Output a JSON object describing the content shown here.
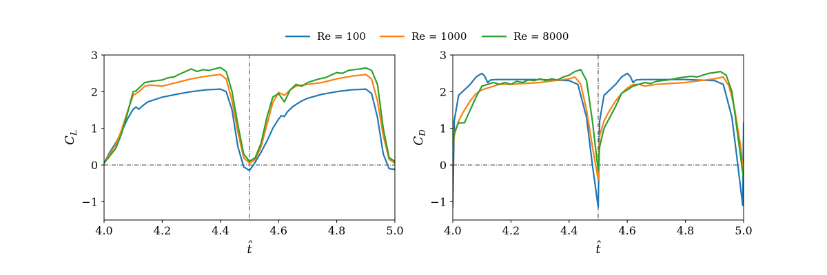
{
  "legend": {
    "entries": [
      {
        "label": "Re = 100",
        "color": "#1f77b4"
      },
      {
        "label": "Re = 1000",
        "color": "#ff7f0e"
      },
      {
        "label": "Re = 8000",
        "color": "#2ca02c"
      }
    ]
  },
  "chart_data": [
    {
      "type": "line",
      "xlabel": "t̂",
      "ylabel_main": "C",
      "ylabel_sub": "L",
      "xlim": [
        4.0,
        5.0
      ],
      "ylim": [
        -1.5,
        3.0
      ],
      "xticks": [
        4.0,
        4.2,
        4.4,
        4.6,
        4.8,
        5.0
      ],
      "xtick_labels": [
        "4.0",
        "4.2",
        "4.4",
        "4.6",
        "4.8",
        "5.0"
      ],
      "yticks": [
        -1,
        0,
        1,
        2,
        3
      ],
      "ytick_labels": [
        "−1",
        "0",
        "1",
        "2",
        "3"
      ],
      "reference_lines": {
        "x": 4.5,
        "y": 0
      },
      "series": [
        {
          "name": "Re = 100",
          "color": "#1f77b4",
          "x": [
            4.0,
            4.02,
            4.04,
            4.06,
            4.08,
            4.1,
            4.11,
            4.12,
            4.13,
            4.15,
            4.18,
            4.2,
            4.25,
            4.3,
            4.35,
            4.4,
            4.42,
            4.44,
            4.46,
            4.48,
            4.5,
            4.52,
            4.54,
            4.56,
            4.58,
            4.6,
            4.61,
            4.62,
            4.63,
            4.65,
            4.68,
            4.7,
            4.75,
            4.8,
            4.85,
            4.9,
            4.92,
            4.94,
            4.96,
            4.98,
            5.0
          ],
          "y": [
            0.05,
            0.35,
            0.6,
            0.9,
            1.25,
            1.52,
            1.58,
            1.52,
            1.6,
            1.72,
            1.8,
            1.85,
            1.93,
            2.0,
            2.05,
            2.07,
            2.0,
            1.5,
            0.5,
            -0.05,
            -0.15,
            0.08,
            0.35,
            0.65,
            1.0,
            1.25,
            1.35,
            1.32,
            1.45,
            1.6,
            1.75,
            1.82,
            1.93,
            2.0,
            2.05,
            2.07,
            1.95,
            1.3,
            0.3,
            -0.1,
            -0.12
          ]
        },
        {
          "name": "Re = 1000",
          "color": "#ff7f0e",
          "x": [
            4.0,
            4.02,
            4.04,
            4.06,
            4.08,
            4.1,
            4.12,
            4.14,
            4.16,
            4.2,
            4.25,
            4.3,
            4.35,
            4.4,
            4.42,
            4.44,
            4.46,
            4.48,
            4.5,
            4.52,
            4.54,
            4.56,
            4.58,
            4.6,
            4.62,
            4.64,
            4.66,
            4.7,
            4.75,
            4.8,
            4.85,
            4.9,
            4.92,
            4.94,
            4.96,
            4.98,
            5.0
          ],
          "y": [
            0.05,
            0.3,
            0.55,
            0.95,
            1.45,
            1.9,
            2.0,
            2.15,
            2.18,
            2.15,
            2.25,
            2.35,
            2.42,
            2.47,
            2.35,
            1.75,
            0.9,
            0.2,
            0.05,
            0.15,
            0.5,
            1.1,
            1.7,
            1.98,
            1.9,
            2.05,
            2.15,
            2.2,
            2.25,
            2.35,
            2.42,
            2.47,
            2.35,
            1.75,
            0.8,
            0.15,
            0.05
          ]
        },
        {
          "name": "Re = 8000",
          "color": "#2ca02c",
          "x": [
            4.0,
            4.02,
            4.04,
            4.06,
            4.08,
            4.1,
            4.11,
            4.12,
            4.14,
            4.16,
            4.18,
            4.2,
            4.22,
            4.24,
            4.26,
            4.28,
            4.3,
            4.32,
            4.34,
            4.36,
            4.38,
            4.4,
            4.42,
            4.44,
            4.46,
            4.48,
            4.5,
            4.52,
            4.54,
            4.56,
            4.58,
            4.6,
            4.62,
            4.64,
            4.66,
            4.68,
            4.7,
            4.72,
            4.74,
            4.76,
            4.78,
            4.8,
            4.82,
            4.84,
            4.86,
            4.88,
            4.9,
            4.92,
            4.94,
            4.96,
            4.98,
            5.0
          ],
          "y": [
            0.05,
            0.25,
            0.45,
            0.85,
            1.4,
            2.0,
            2.02,
            2.1,
            2.25,
            2.28,
            2.3,
            2.32,
            2.38,
            2.4,
            2.48,
            2.55,
            2.62,
            2.55,
            2.6,
            2.58,
            2.62,
            2.66,
            2.55,
            2.0,
            1.1,
            0.3,
            0.1,
            0.2,
            0.6,
            1.3,
            1.85,
            1.95,
            1.72,
            2.05,
            2.2,
            2.15,
            2.25,
            2.3,
            2.35,
            2.38,
            2.45,
            2.52,
            2.5,
            2.58,
            2.6,
            2.62,
            2.65,
            2.58,
            2.2,
            1.0,
            0.2,
            0.1
          ]
        }
      ]
    },
    {
      "type": "line",
      "xlabel": "t̂",
      "ylabel_main": "C",
      "ylabel_sub": "D",
      "xlim": [
        4.0,
        5.0
      ],
      "ylim": [
        -1.5,
        3.0
      ],
      "xticks": [
        4.0,
        4.2,
        4.4,
        4.6,
        4.8,
        5.0
      ],
      "xtick_labels": [
        "4.0",
        "4.2",
        "4.4",
        "4.6",
        "4.8",
        "5.0"
      ],
      "yticks": [
        -1,
        0,
        1,
        2,
        3
      ],
      "ytick_labels": [
        "−1",
        "0",
        "1",
        "2",
        "3"
      ],
      "reference_lines": {
        "x": 4.5,
        "y": 0
      },
      "series": [
        {
          "name": "Re = 100",
          "color": "#1f77b4",
          "x": [
            4.0,
            4.005,
            4.02,
            4.04,
            4.06,
            4.08,
            4.1,
            4.11,
            4.12,
            4.13,
            4.15,
            4.2,
            4.3,
            4.4,
            4.43,
            4.46,
            4.48,
            4.5,
            4.505,
            4.52,
            4.54,
            4.56,
            4.58,
            4.6,
            4.61,
            4.62,
            4.63,
            4.65,
            4.7,
            4.8,
            4.9,
            4.93,
            4.96,
            4.98,
            4.997,
            5.0
          ],
          "y": [
            -1.15,
            1.2,
            1.9,
            2.05,
            2.2,
            2.4,
            2.5,
            2.42,
            2.25,
            2.32,
            2.33,
            2.33,
            2.33,
            2.3,
            2.2,
            1.3,
            0.0,
            -1.15,
            1.2,
            1.9,
            2.05,
            2.2,
            2.4,
            2.5,
            2.42,
            2.25,
            2.32,
            2.33,
            2.33,
            2.33,
            2.3,
            2.2,
            1.3,
            0.0,
            -1.1,
            1.15
          ]
        },
        {
          "name": "Re = 1000",
          "color": "#ff7f0e",
          "x": [
            4.0,
            4.005,
            4.02,
            4.04,
            4.06,
            4.08,
            4.1,
            4.12,
            4.14,
            4.16,
            4.2,
            4.3,
            4.4,
            4.42,
            4.44,
            4.46,
            4.48,
            4.5,
            4.505,
            4.52,
            4.54,
            4.56,
            4.58,
            4.6,
            4.62,
            4.64,
            4.66,
            4.7,
            4.8,
            4.9,
            4.93,
            4.95,
            4.97,
            4.99,
            5.0
          ],
          "y": [
            0.4,
            0.8,
            1.2,
            1.5,
            1.75,
            1.95,
            2.05,
            2.1,
            2.15,
            2.2,
            2.2,
            2.25,
            2.35,
            2.4,
            2.2,
            1.5,
            0.5,
            -0.4,
            0.8,
            1.2,
            1.5,
            1.75,
            1.95,
            2.1,
            2.2,
            2.2,
            2.15,
            2.2,
            2.25,
            2.35,
            2.4,
            2.15,
            1.5,
            0.5,
            -0.3
          ]
        },
        {
          "name": "Re = 8000",
          "color": "#2ca02c",
          "x": [
            4.0,
            4.005,
            4.02,
            4.04,
            4.06,
            4.08,
            4.1,
            4.12,
            4.14,
            4.16,
            4.18,
            4.2,
            4.22,
            4.24,
            4.26,
            4.28,
            4.3,
            4.32,
            4.34,
            4.36,
            4.38,
            4.4,
            4.42,
            4.44,
            4.46,
            4.48,
            4.5,
            4.505,
            4.52,
            4.54,
            4.56,
            4.58,
            4.6,
            4.62,
            4.64,
            4.66,
            4.68,
            4.7,
            4.72,
            4.74,
            4.76,
            4.78,
            4.8,
            4.82,
            4.84,
            4.86,
            4.88,
            4.9,
            4.92,
            4.94,
            4.96,
            4.98,
            5.0
          ],
          "y": [
            0.45,
            0.9,
            1.15,
            1.15,
            1.5,
            1.85,
            2.15,
            2.2,
            2.25,
            2.2,
            2.25,
            2.2,
            2.28,
            2.25,
            2.32,
            2.3,
            2.35,
            2.3,
            2.35,
            2.32,
            2.4,
            2.45,
            2.55,
            2.6,
            2.3,
            1.2,
            -0.15,
            0.5,
            1.0,
            1.3,
            1.6,
            1.95,
            2.05,
            2.15,
            2.2,
            2.25,
            2.22,
            2.28,
            2.3,
            2.32,
            2.35,
            2.38,
            2.4,
            2.42,
            2.4,
            2.45,
            2.5,
            2.52,
            2.55,
            2.45,
            2.0,
            0.8,
            -0.4
          ]
        }
      ]
    }
  ]
}
